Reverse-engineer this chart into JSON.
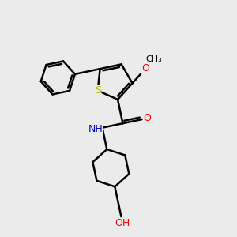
{
  "bg_color": "#ebebeb",
  "bond_color": "#000000",
  "bond_width": 1.8,
  "figsize": [
    3.0,
    3.0
  ],
  "dpi": 100,
  "atom_colors": {
    "S": "#b8b800",
    "O": "#ff0000",
    "N": "#0000cc",
    "C": "#000000",
    "H": "#000000"
  },
  "xlim": [
    0,
    10
  ],
  "ylim": [
    0,
    10
  ]
}
